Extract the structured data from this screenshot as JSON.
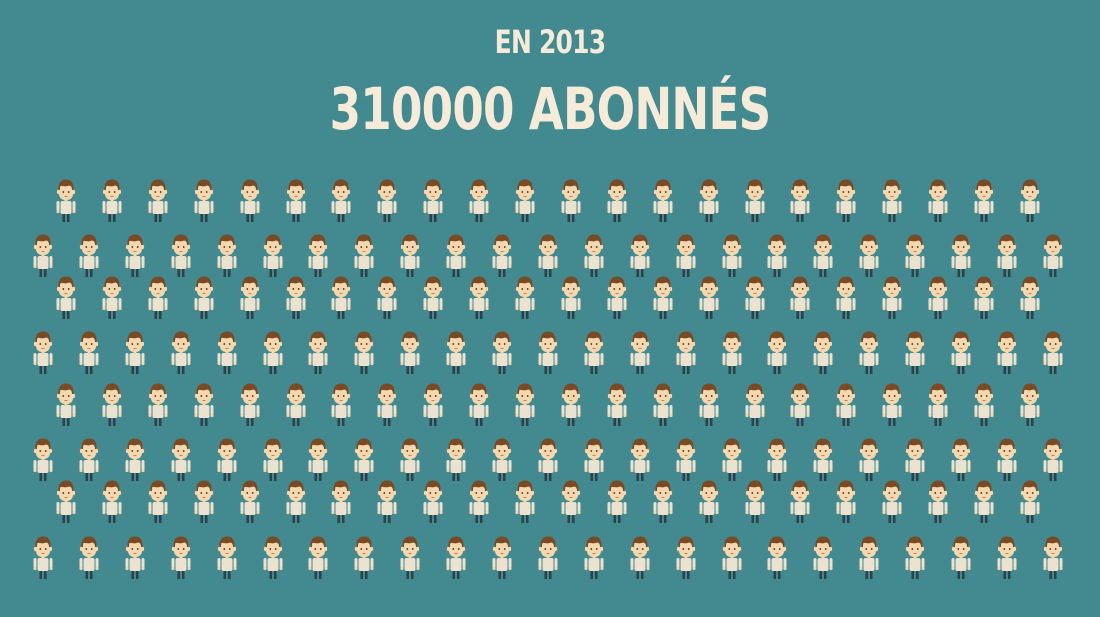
{
  "title": {
    "year_line": "EN 2013",
    "count_line": "310000 ABONNÉS"
  },
  "colors": {
    "background": "#428a90",
    "title_text": "#f6ead8",
    "hair": "#7a4a25",
    "skin": "#f7d7ad",
    "shirt": "#ece2d0",
    "pants": "#2f4048"
  },
  "crowd": {
    "icon": "person-icon"
  }
}
